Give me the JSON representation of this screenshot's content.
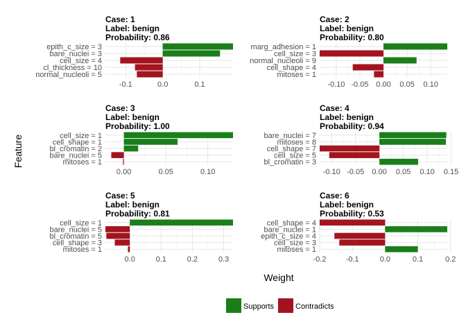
{
  "chart_data": {
    "type": "bar",
    "orientation": "horizontal",
    "xlabel": "Weight",
    "ylabel": "Feature",
    "grid": true,
    "legend": {
      "position": "bottom",
      "entries": [
        {
          "label": "Supports",
          "color": "#1a7f1a"
        },
        {
          "label": "Contradicts",
          "color": "#a3141f"
        }
      ]
    },
    "panels": [
      {
        "case_label": "Case: 1",
        "label_text": "Label: benign",
        "prob_text": "Probability: 0.86",
        "xlim": [
          -0.155,
          0.19
        ],
        "ticks": [
          -0.1,
          0.0,
          0.1
        ],
        "tick_labels": [
          "-0.1",
          "0.0",
          "0.1"
        ],
        "features": [
          "epith_c_size = 3",
          "bare_nuclei = 3",
          "cell_size = 4",
          "cl_thickness = 10",
          "normal_nucleoli = 5"
        ],
        "values": [
          0.19,
          0.155,
          -0.115,
          -0.075,
          -0.07
        ]
      },
      {
        "case_label": "Case: 2",
        "label_text": "Label: benign",
        "prob_text": "Probability: 0.80",
        "xlim": [
          -0.135,
          0.135
        ],
        "ticks": [
          -0.1,
          -0.05,
          0.0,
          0.05,
          0.1
        ],
        "tick_labels": [
          "-0.10",
          "-0.05",
          "0.00",
          "0.05",
          "0.10"
        ],
        "features": [
          "marg_adhesion = 1",
          "cell_size = 3",
          "normal_nucleoli = 9",
          "cell_shape = 4",
          "mitoses = 1"
        ],
        "values": [
          0.135,
          -0.135,
          0.07,
          -0.065,
          -0.02
        ]
      },
      {
        "case_label": "Case: 3",
        "label_text": "Label: benign",
        "prob_text": "Probability: 1.00",
        "xlim": [
          -0.022,
          0.13
        ],
        "ticks": [
          0.0,
          0.05,
          0.1
        ],
        "tick_labels": [
          "0.00",
          "0.05",
          "0.10"
        ],
        "features": [
          "cell_size = 1",
          "cell_shape = 1",
          "bl_cromatin = 2",
          "bare_nuclei = 5",
          "mitoses = 1"
        ],
        "values": [
          0.13,
          0.064,
          0.017,
          -0.015,
          -0.001
        ]
      },
      {
        "case_label": "Case: 4",
        "label_text": "Label: benign",
        "prob_text": "Probability: 0.94",
        "xlim": [
          -0.125,
          0.142
        ],
        "ticks": [
          -0.1,
          -0.05,
          0.0,
          0.05,
          0.1,
          0.15
        ],
        "tick_labels": [
          "-0.10",
          "-0.05",
          "0.00",
          "0.05",
          "0.10",
          "0.15"
        ],
        "features": [
          "bare_nuclei = 7",
          "mitoses = 8",
          "cell_shape = 7",
          "cell_size = 5",
          "bl_cromatin = 3"
        ],
        "values": [
          0.14,
          0.139,
          -0.125,
          -0.105,
          0.081
        ]
      },
      {
        "case_label": "Case: 5",
        "label_text": "Label: benign",
        "prob_text": "Probability: 0.81",
        "xlim": [
          -0.078,
          0.33
        ],
        "ticks": [
          0.0,
          0.1,
          0.2,
          0.3
        ],
        "tick_labels": [
          "0.0",
          "0.1",
          "0.2",
          "0.3"
        ],
        "features": [
          "cell_size = 1",
          "bare_nuclei = 5",
          "bl_cromatin = 5",
          "cell_shape = 3",
          "mitoses = 1"
        ],
        "values": [
          0.33,
          -0.078,
          -0.075,
          -0.048,
          -0.006
        ]
      },
      {
        "case_label": "Case: 6",
        "label_text": "Label: benign",
        "prob_text": "Probability: 0.53",
        "xlim": [
          -0.2,
          0.19
        ],
        "ticks": [
          -0.2,
          -0.1,
          0.0,
          0.1,
          0.2
        ],
        "tick_labels": [
          "-0.2",
          "-0.1",
          "0.0",
          "0.1",
          "0.2"
        ],
        "features": [
          "cell_shape = 4",
          "bare_nuclei = 1",
          "epith_c_size = 4",
          "cell_size = 3",
          "mitoses = 1"
        ],
        "values": [
          -0.2,
          0.19,
          -0.155,
          -0.14,
          0.1
        ]
      }
    ]
  }
}
